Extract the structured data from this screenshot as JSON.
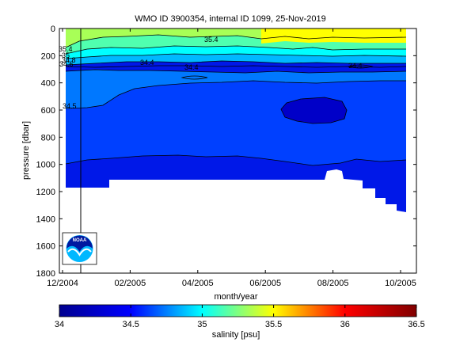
{
  "chart_data": {
    "type": "heatmap",
    "title": "WMO ID 3900354, internal ID 1099, 25-Nov-2019",
    "xlabel": "month/year",
    "ylabel": "pressure [dbar]",
    "x_ticks": [
      "12/2004",
      "02/2005",
      "04/2005",
      "06/2005",
      "08/2005",
      "10/2005"
    ],
    "y_ticks": [
      "0",
      "200",
      "400",
      "600",
      "800",
      "1000",
      "1200",
      "1400",
      "1600",
      "1800"
    ],
    "ylim": [
      1800,
      0
    ],
    "colorbar": {
      "label": "salinity [psu]",
      "ticks": [
        "34",
        "34.5",
        "35",
        "35.5",
        "36",
        "36.5"
      ],
      "range": [
        34,
        36.5
      ],
      "colormap": [
        "#00008f",
        "#0000ff",
        "#00ffff",
        "#ffff00",
        "#ff0000",
        "#800000"
      ]
    },
    "contour_labels": [
      "35.4",
      "35.4",
      "35",
      "34.8",
      "34.6",
      "34.4",
      "34.4",
      "34.4",
      "34.5"
    ],
    "layers": [
      {
        "salinity": 35.6,
        "color": "#ffff00"
      },
      {
        "salinity": 35.3,
        "color": "#a8ff57"
      },
      {
        "salinity": 35.0,
        "color": "#50ffaf"
      },
      {
        "salinity": 34.9,
        "color": "#00ffff"
      },
      {
        "salinity": 34.7,
        "color": "#00b8ff"
      },
      {
        "salinity": 34.6,
        "color": "#0078ff"
      },
      {
        "salinity": 34.5,
        "color": "#0040ff"
      },
      {
        "salinity": 34.4,
        "color": "#0018e8"
      },
      {
        "salinity": 34.3,
        "color": "#0000c8"
      }
    ],
    "logo": "NOAA"
  }
}
